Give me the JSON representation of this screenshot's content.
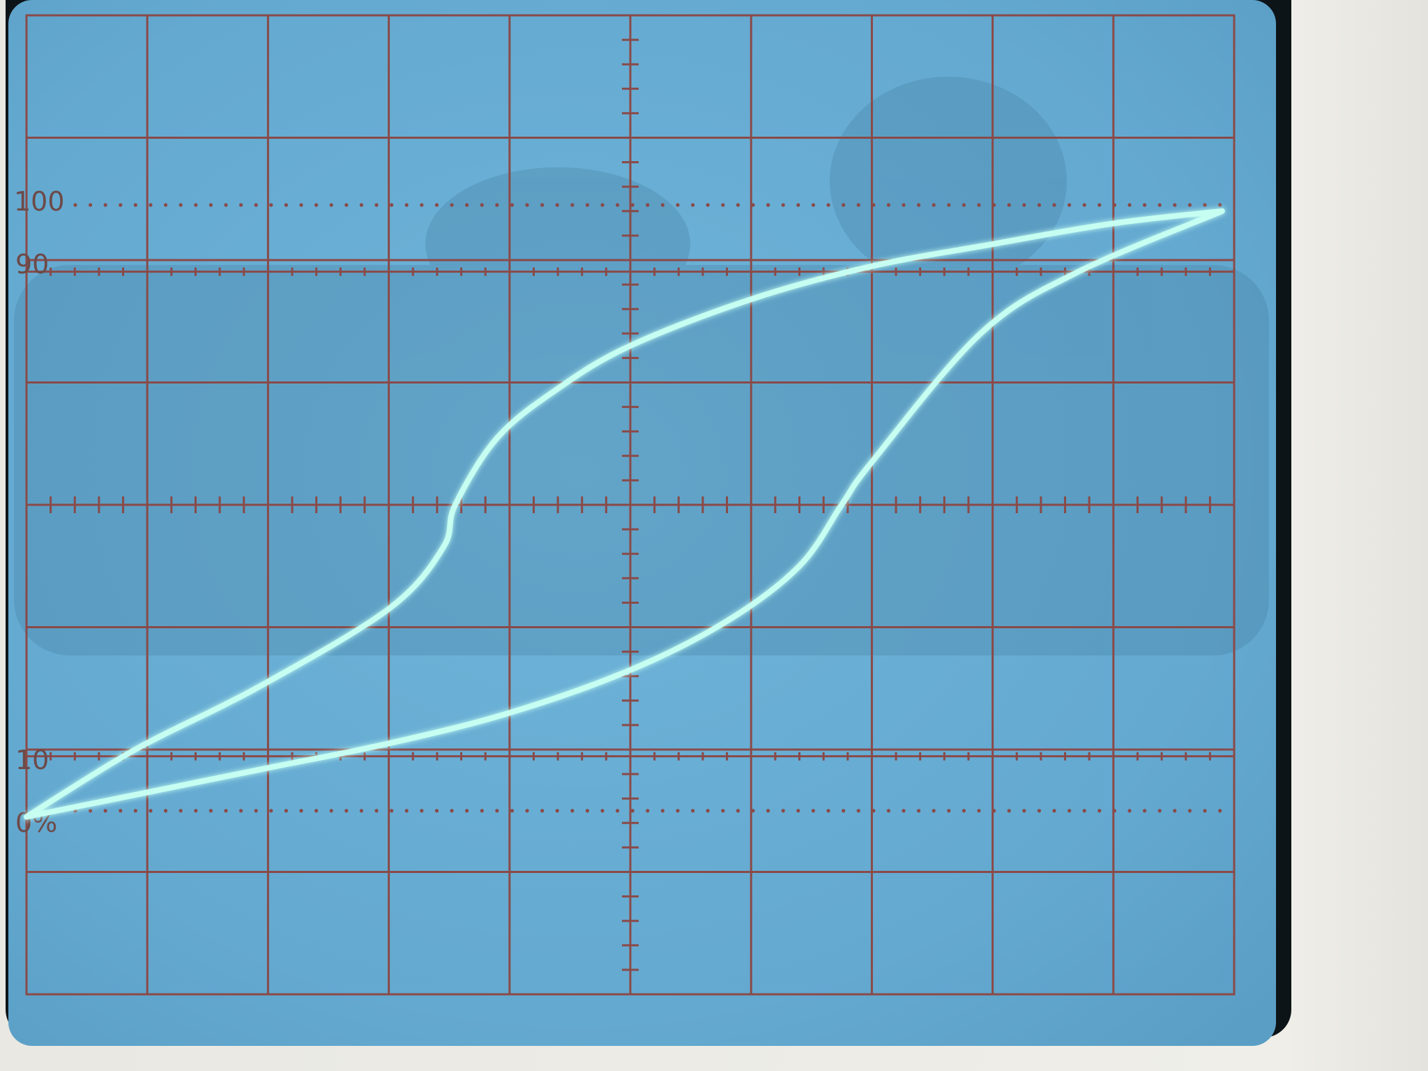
{
  "scale_labels": {
    "top_full": "100",
    "top_ninety": "90",
    "bottom_ten": "10",
    "bottom_zero": "0%"
  },
  "colors": {
    "bezel": "#efeee8",
    "phosphor_bg": "#6ab0d6",
    "graticule": "#8a4a48",
    "trace": "#c6fff2"
  },
  "chart_data": {
    "type": "line",
    "grid": true,
    "grid_divisions": {
      "x": 10,
      "y": 8
    },
    "series": [
      {
        "values": [
          [
            -5.0,
            -2.55
          ],
          [
            -4.1,
            -2.0
          ],
          [
            -3.1,
            -1.5
          ],
          [
            -2.0,
            -0.85
          ],
          [
            -1.55,
            -0.35
          ],
          [
            -1.45,
            0.0
          ],
          [
            -1.1,
            0.55
          ],
          [
            -0.6,
            0.95
          ],
          [
            0.0,
            1.3
          ],
          [
            1.0,
            1.68
          ],
          [
            2.0,
            1.95
          ],
          [
            3.0,
            2.13
          ],
          [
            4.0,
            2.3
          ],
          [
            4.9,
            2.4
          ]
        ]
      },
      {
        "values": [
          [
            4.9,
            2.4
          ],
          [
            3.7,
            1.9
          ],
          [
            2.9,
            1.4
          ],
          [
            2.0,
            0.35
          ],
          [
            1.75,
            0.0
          ],
          [
            1.4,
            -0.5
          ],
          [
            0.8,
            -0.95
          ],
          [
            0.0,
            -1.35
          ],
          [
            -1.0,
            -1.7
          ],
          [
            -2.0,
            -1.95
          ],
          [
            -3.0,
            -2.15
          ],
          [
            -4.0,
            -2.35
          ],
          [
            -5.0,
            -2.55
          ]
        ]
      }
    ]
  }
}
